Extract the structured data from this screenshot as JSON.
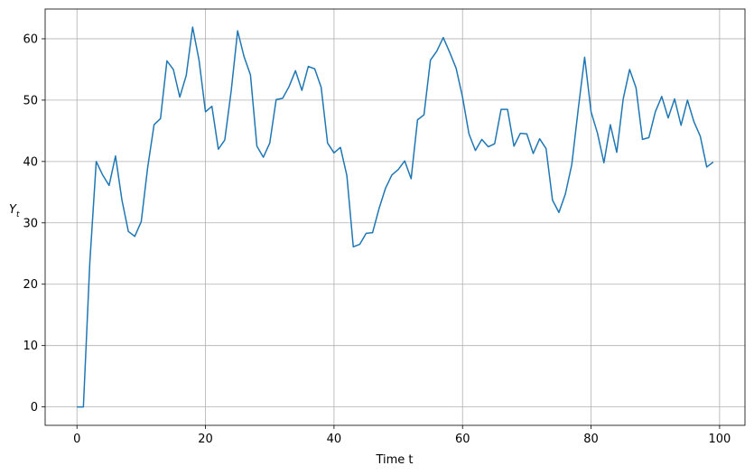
{
  "chart_data": {
    "type": "line",
    "xlabel": "Time t",
    "ylabel": "Y",
    "ylabel_subscript": "t",
    "x": [
      0,
      1,
      2,
      3,
      4,
      5,
      6,
      7,
      8,
      9,
      10,
      11,
      12,
      13,
      14,
      15,
      16,
      17,
      18,
      19,
      20,
      21,
      22,
      23,
      24,
      25,
      26,
      27,
      28,
      29,
      30,
      31,
      32,
      33,
      34,
      35,
      36,
      37,
      38,
      39,
      40,
      41,
      42,
      43,
      44,
      45,
      46,
      47,
      48,
      49,
      50,
      51,
      52,
      53,
      54,
      55,
      56,
      57,
      58,
      59,
      60,
      61,
      62,
      63,
      64,
      65,
      66,
      67,
      68,
      69,
      70,
      71,
      72,
      73,
      74,
      75,
      76,
      77,
      78,
      79,
      80,
      81,
      82,
      83,
      84,
      85,
      86,
      87,
      88,
      89,
      90,
      91,
      92,
      93,
      94,
      95,
      96,
      97,
      98,
      99
    ],
    "series": [
      {
        "color": "#1f77b4",
        "values": [
          0,
          0,
          23.5,
          40,
          37.8,
          36.1,
          40.9,
          33.7,
          28.6,
          27.8,
          30.2,
          39,
          46,
          47,
          56.4,
          55,
          50.5,
          54,
          61.9,
          56.5,
          48.1,
          49,
          42,
          43.5,
          51.5,
          61.3,
          57.1,
          54.1,
          42.5,
          40.7,
          43,
          50.1,
          50.3,
          52.2,
          54.8,
          51.6,
          55.5,
          55.1,
          52.1,
          43,
          41.4,
          42.3,
          37.7,
          26.1,
          26.5,
          28.3,
          28.4,
          32.3,
          35.6,
          37.8,
          38.7,
          40.1,
          37.2,
          46.8,
          47.6,
          56.5,
          58,
          60.2,
          57.8,
          55.2,
          50.5,
          44.5,
          41.8,
          43.6,
          42.4,
          42.9,
          48.5,
          48.5,
          42.5,
          44.6,
          44.5,
          41.3,
          43.7,
          42.1,
          33.7,
          31.7,
          34.7,
          39.5,
          48.5,
          57,
          48.1,
          44.6,
          39.8,
          46,
          41.5,
          50.2,
          55,
          52,
          43.6,
          43.9,
          48.1,
          50.6,
          47.1,
          50.2,
          45.9,
          50,
          46.5,
          44.1,
          39.1,
          39.9
        ]
      }
    ],
    "xlim": [
      -4.95,
      103.95
    ],
    "ylim": [
      -3,
      64.85
    ],
    "xticks": [
      0,
      20,
      40,
      60,
      80,
      100
    ],
    "yticks": [
      0,
      10,
      20,
      30,
      40,
      50,
      60
    ],
    "grid": true
  }
}
